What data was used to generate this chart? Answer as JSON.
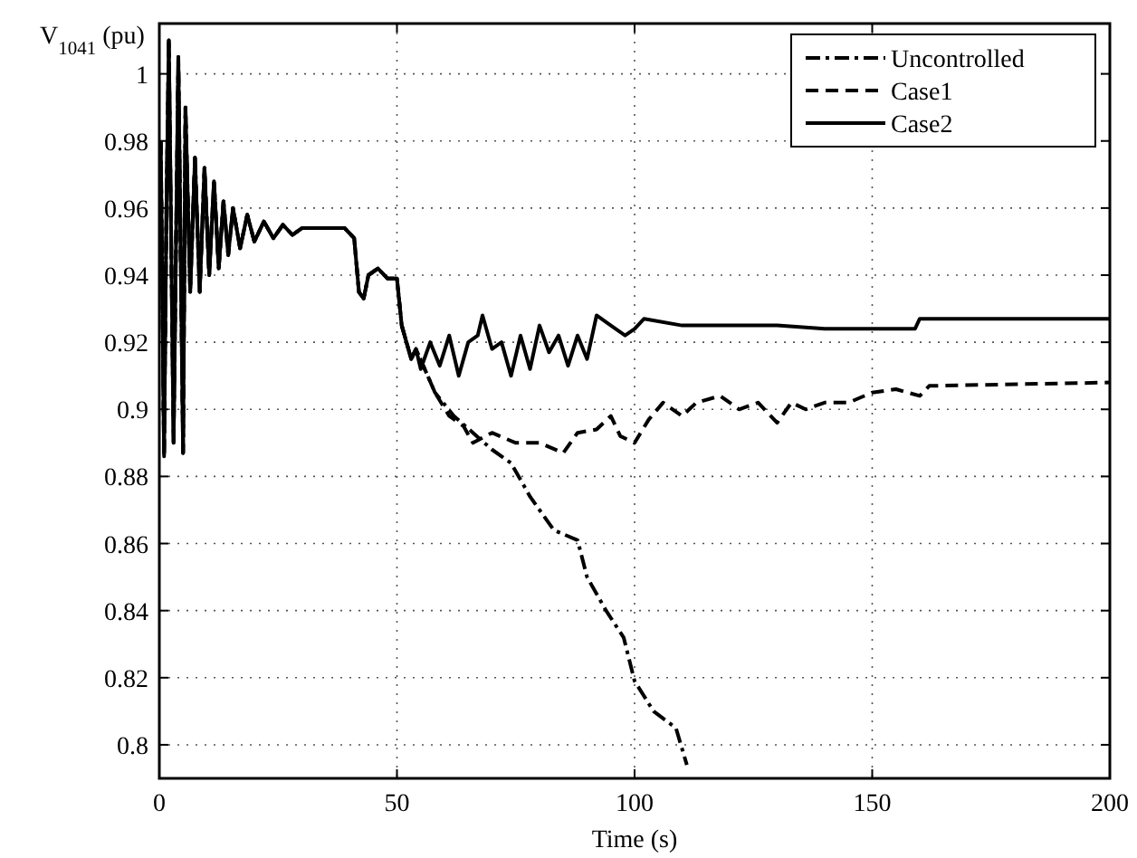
{
  "chart_data": {
    "type": "line",
    "xlabel": "Time (s)",
    "ylabel": "V$_{1041}$ (pu)",
    "xlim": [
      0,
      200
    ],
    "ylim": [
      0.79,
      1.015
    ],
    "xticks": [
      0,
      50,
      100,
      150,
      200
    ],
    "yticks": [
      0.8,
      0.82,
      0.84,
      0.86,
      0.88,
      0.9,
      0.92,
      0.94,
      0.96,
      0.98,
      1
    ],
    "grid": true,
    "legend": "top right",
    "marker": "none",
    "series": [
      {
        "name": "Uncontrolled",
        "color": "#000000",
        "line_style": "dashdot",
        "x": [
          0.3,
          1,
          1.5,
          2,
          3,
          4,
          5,
          5.5,
          6.5,
          7.5,
          8.5,
          9.5,
          10.5,
          11.5,
          12.5,
          13.5,
          14.5,
          15.5,
          17,
          18.5,
          20,
          22,
          24,
          26,
          28,
          30,
          35,
          39,
          41,
          42,
          43,
          44,
          46,
          48,
          50,
          51,
          52,
          53,
          54,
          58,
          62,
          66,
          70,
          74,
          78,
          83,
          88,
          90,
          94,
          97.7,
          100,
          104,
          108.7,
          111
        ],
        "values": [
          0.98,
          0.886,
          0.96,
          1.01,
          0.89,
          1.005,
          0.887,
          0.99,
          0.935,
          0.975,
          0.935,
          0.972,
          0.94,
          0.968,
          0.942,
          0.962,
          0.946,
          0.96,
          0.948,
          0.958,
          0.95,
          0.956,
          0.951,
          0.955,
          0.952,
          0.954,
          0.954,
          0.954,
          0.951,
          0.935,
          0.933,
          0.94,
          0.942,
          0.939,
          0.939,
          0.925,
          0.92,
          0.915,
          0.918,
          0.905,
          0.898,
          0.893,
          0.888,
          0.884,
          0.874,
          0.864,
          0.861,
          0.85,
          0.84,
          0.832,
          0.819,
          0.81,
          0.805,
          0.794
        ]
      },
      {
        "name": "Case1",
        "color": "#000000",
        "line_style": "dashed",
        "x": [
          0.3,
          1,
          1.5,
          2,
          3,
          4,
          5,
          5.5,
          6.5,
          7.5,
          8.5,
          9.5,
          10.5,
          11.5,
          12.5,
          13.5,
          14.5,
          15.5,
          17,
          18.5,
          20,
          22,
          24,
          26,
          28,
          30,
          35,
          39,
          41,
          42,
          43,
          44,
          46,
          48,
          50,
          51,
          52,
          53,
          54,
          58,
          61,
          64,
          66,
          70,
          75,
          80,
          85,
          88,
          92,
          95,
          97,
          100,
          103,
          106,
          110,
          113,
          118,
          122,
          126,
          130,
          133,
          136,
          140,
          145,
          150,
          155,
          160,
          162,
          200
        ],
        "values": [
          0.98,
          0.886,
          0.96,
          1.01,
          0.89,
          1.005,
          0.887,
          0.99,
          0.935,
          0.975,
          0.935,
          0.972,
          0.94,
          0.968,
          0.942,
          0.962,
          0.946,
          0.96,
          0.948,
          0.958,
          0.95,
          0.956,
          0.951,
          0.955,
          0.952,
          0.954,
          0.954,
          0.954,
          0.951,
          0.935,
          0.933,
          0.94,
          0.942,
          0.939,
          0.939,
          0.925,
          0.92,
          0.915,
          0.918,
          0.905,
          0.898,
          0.895,
          0.89,
          0.893,
          0.89,
          0.89,
          0.887,
          0.893,
          0.894,
          0.898,
          0.892,
          0.89,
          0.897,
          0.902,
          0.898,
          0.902,
          0.904,
          0.9,
          0.902,
          0.896,
          0.902,
          0.9,
          0.902,
          0.902,
          0.905,
          0.906,
          0.904,
          0.907,
          0.908
        ]
      },
      {
        "name": "Case2",
        "color": "#000000",
        "line_style": "solid",
        "x": [
          0.3,
          1,
          1.5,
          2,
          3,
          4,
          5,
          5.5,
          6.5,
          7.5,
          8.5,
          9.5,
          10.5,
          11.5,
          12.5,
          13.5,
          14.5,
          15.5,
          17,
          18.5,
          20,
          22,
          24,
          26,
          28,
          30,
          35,
          39,
          41,
          42,
          43,
          44,
          46,
          48,
          50,
          51,
          52,
          53,
          54,
          55,
          57,
          59,
          61,
          63,
          65,
          67,
          68,
          70,
          72,
          74,
          76,
          78,
          80,
          82,
          84,
          86,
          88,
          90,
          92,
          95,
          98,
          100,
          102,
          110,
          130,
          140,
          150,
          159,
          160,
          200
        ],
        "values": [
          0.98,
          0.886,
          0.96,
          1.01,
          0.89,
          1.005,
          0.887,
          0.99,
          0.935,
          0.975,
          0.935,
          0.972,
          0.94,
          0.968,
          0.942,
          0.962,
          0.946,
          0.96,
          0.948,
          0.958,
          0.95,
          0.956,
          0.951,
          0.955,
          0.952,
          0.954,
          0.954,
          0.954,
          0.951,
          0.935,
          0.933,
          0.94,
          0.942,
          0.939,
          0.939,
          0.925,
          0.92,
          0.915,
          0.918,
          0.912,
          0.92,
          0.913,
          0.922,
          0.91,
          0.92,
          0.922,
          0.928,
          0.918,
          0.92,
          0.91,
          0.922,
          0.912,
          0.925,
          0.917,
          0.922,
          0.913,
          0.922,
          0.915,
          0.928,
          0.925,
          0.922,
          0.924,
          0.927,
          0.925,
          0.925,
          0.924,
          0.924,
          0.924,
          0.927,
          0.927
        ]
      }
    ]
  }
}
